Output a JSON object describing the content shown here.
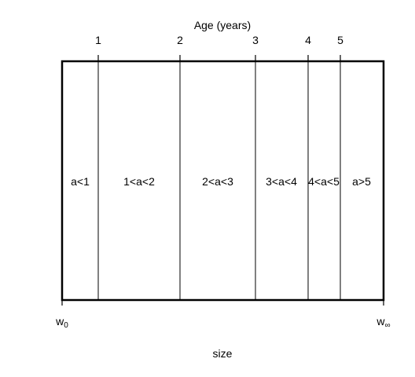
{
  "axis_top": {
    "title": "Age (years)",
    "ticks": [
      "1",
      "2",
      "3",
      "4",
      "5"
    ]
  },
  "axis_bottom": {
    "title": "size",
    "left_label": {
      "base": "w",
      "sub": "0"
    },
    "right_label": {
      "base": "w",
      "sub": "∞"
    }
  },
  "regions": [
    {
      "label": "a<1"
    },
    {
      "label": "1<a<2"
    },
    {
      "label": "2<a<3"
    },
    {
      "label": "3<a<4"
    },
    {
      "label": "4<a<5"
    },
    {
      "label": "a>5"
    }
  ],
  "colors": {
    "line": "#000000",
    "background": "#ffffff"
  }
}
